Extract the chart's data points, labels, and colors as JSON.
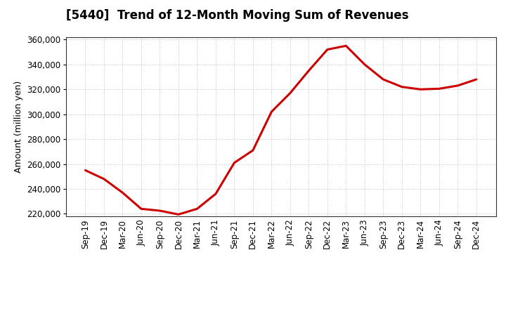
{
  "title": "[5440]  Trend of 12-Month Moving Sum of Revenues",
  "ylabel": "Amount (million yen)",
  "line_color": "#cc0000",
  "background_color": "#ffffff",
  "plot_bg_color": "#ffffff",
  "grid_color": "#b0b0b0",
  "ylim": [
    218000,
    362000
  ],
  "yticks": [
    220000,
    240000,
    260000,
    280000,
    300000,
    320000,
    340000,
    360000
  ],
  "x_labels": [
    "Sep-19",
    "Dec-19",
    "Mar-20",
    "Jun-20",
    "Sep-20",
    "Dec-20",
    "Mar-21",
    "Jun-21",
    "Sep-21",
    "Dec-21",
    "Mar-22",
    "Jun-22",
    "Sep-22",
    "Dec-22",
    "Mar-23",
    "Jun-23",
    "Sep-23",
    "Dec-23",
    "Mar-24",
    "Jun-24",
    "Sep-24",
    "Dec-24"
  ],
  "values": [
    255000,
    248000,
    237000,
    224000,
    222500,
    219500,
    224000,
    236000,
    261000,
    271000,
    302000,
    317000,
    335000,
    352000,
    355000,
    340000,
    328000,
    322000,
    320000,
    320500,
    323000,
    328000
  ],
  "title_fontsize": 12,
  "title_fontweight": "bold",
  "ylabel_fontsize": 9,
  "tick_fontsize": 8.5,
  "linewidth": 2.2
}
